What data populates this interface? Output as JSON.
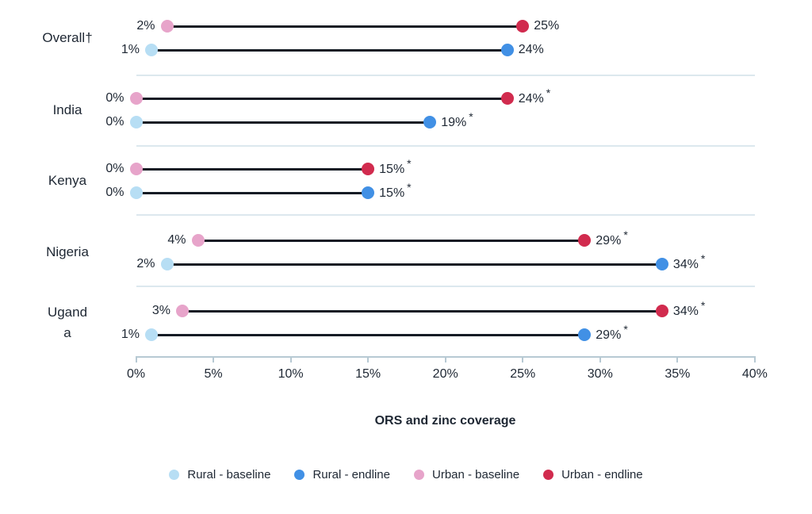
{
  "chart_data": {
    "type": "dumbbell",
    "xlabel": "ORS and zinc coverage",
    "xlim": [
      0,
      40
    ],
    "x_tick_step": 5,
    "x_tick_labels": [
      "0%",
      "5%",
      "10%",
      "15%",
      "20%",
      "25%",
      "30%",
      "35%",
      "40%"
    ],
    "grid": "group-separators",
    "legend_position": "bottom-center",
    "groups": [
      {
        "label": "Overall†",
        "label_lines": [
          "Overall†"
        ],
        "rows": [
          {
            "series": "urban",
            "baseline": 2,
            "endline": 25,
            "baseline_label": "2%",
            "endline_label": "25%",
            "significant": false
          },
          {
            "series": "rural",
            "baseline": 1,
            "endline": 24,
            "baseline_label": "1%",
            "endline_label": "24%",
            "significant": false
          }
        ]
      },
      {
        "label": "India",
        "label_lines": [
          "India"
        ],
        "rows": [
          {
            "series": "urban",
            "baseline": 0,
            "endline": 24,
            "baseline_label": "0%",
            "endline_label": "24%",
            "significant": true
          },
          {
            "series": "rural",
            "baseline": 0,
            "endline": 19,
            "baseline_label": "0%",
            "endline_label": "19%",
            "significant": true
          }
        ]
      },
      {
        "label": "Kenya",
        "label_lines": [
          "Kenya"
        ],
        "rows": [
          {
            "series": "urban",
            "baseline": 0,
            "endline": 15,
            "baseline_label": "0%",
            "endline_label": "15%",
            "significant": true
          },
          {
            "series": "rural",
            "baseline": 0,
            "endline": 15,
            "baseline_label": "0%",
            "endline_label": "15%",
            "significant": true
          }
        ]
      },
      {
        "label": "Nigeria",
        "label_lines": [
          "Nigeria"
        ],
        "rows": [
          {
            "series": "urban",
            "baseline": 4,
            "endline": 29,
            "baseline_label": "4%",
            "endline_label": "29%",
            "significant": true
          },
          {
            "series": "rural",
            "baseline": 2,
            "endline": 34,
            "baseline_label": "2%",
            "endline_label": "34%",
            "significant": true
          }
        ]
      },
      {
        "label": "Uganda",
        "label_lines": [
          "Ugand",
          "a"
        ],
        "rows": [
          {
            "series": "urban",
            "baseline": 3,
            "endline": 34,
            "baseline_label": "3%",
            "endline_label": "34%",
            "significant": true
          },
          {
            "series": "rural",
            "baseline": 1,
            "endline": 29,
            "baseline_label": "1%",
            "endline_label": "29%",
            "significant": true
          }
        ]
      }
    ],
    "significance_marker": "*",
    "legend": [
      {
        "label": "Rural - baseline",
        "series": "rural",
        "stage": "baseline",
        "color": "#b7def4"
      },
      {
        "label": "Rural - endline",
        "series": "rural",
        "stage": "endline",
        "color": "#4190e5"
      },
      {
        "label": "Urban - baseline",
        "series": "urban",
        "stage": "baseline",
        "color": "#e7a4ca"
      },
      {
        "label": "Urban - endline",
        "series": "urban",
        "stage": "endline",
        "color": "#d12b4e"
      }
    ],
    "colors": {
      "text": "#1e2733",
      "connector_line": "#141b24",
      "separator": "#dce8ee",
      "axis": "#b7c9d3",
      "rural_baseline": "#b7def4",
      "rural_endline": "#4190e5",
      "urban_baseline": "#e7a4ca",
      "urban_endline": "#d12b4e"
    }
  }
}
